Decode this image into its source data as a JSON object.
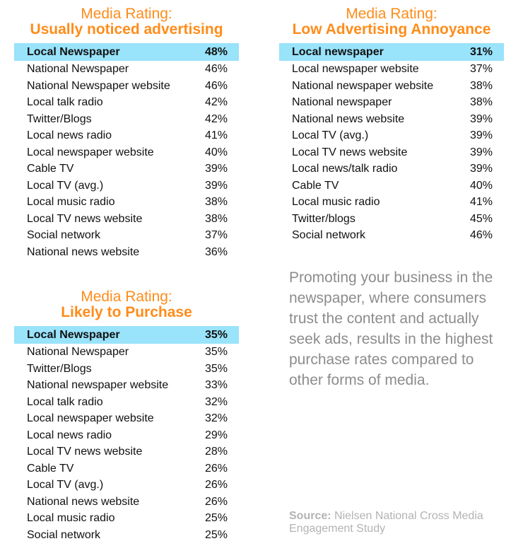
{
  "panels": [
    {
      "title_line1": "Media Rating:",
      "title_line2": "Usually noticed advertising",
      "rows": [
        {
          "label": "Local Newspaper",
          "value": "48%",
          "highlight": true
        },
        {
          "label": "National Newspaper",
          "value": "46%"
        },
        {
          "label": "National Newspaper website",
          "value": "46%"
        },
        {
          "label": "Local talk radio",
          "value": "42%"
        },
        {
          "label": "Twitter/Blogs",
          "value": "42%"
        },
        {
          "label": "Local news radio",
          "value": "41%"
        },
        {
          "label": "Local newspaper website",
          "value": "40%"
        },
        {
          "label": "Cable TV",
          "value": "39%"
        },
        {
          "label": "Local TV (avg.)",
          "value": "39%"
        },
        {
          "label": "Local music radio",
          "value": "38%"
        },
        {
          "label": "Local TV news website",
          "value": "38%"
        },
        {
          "label": "Social network",
          "value": "37%"
        },
        {
          "label": "National news website",
          "value": "36%"
        }
      ]
    },
    {
      "title_line1": "Media Rating:",
      "title_line2": "Low Advertising Annoyance",
      "rows": [
        {
          "label": "Local newspaper",
          "value": "31%",
          "highlight": true
        },
        {
          "label": "Local newspaper website",
          "value": "37%"
        },
        {
          "label": "National newspaper website",
          "value": "38%"
        },
        {
          "label": "National newspaper",
          "value": "38%"
        },
        {
          "label": "National news website",
          "value": "39%"
        },
        {
          "label": "Local TV (avg.)",
          "value": "39%"
        },
        {
          "label": "Local TV news website",
          "value": "39%"
        },
        {
          "label": "Local news/talk radio",
          "value": "39%"
        },
        {
          "label": "Cable TV",
          "value": "40%"
        },
        {
          "label": "Local music radio",
          "value": "41%"
        },
        {
          "label": "Twitter/blogs",
          "value": "45%"
        },
        {
          "label": "Social network",
          "value": "46%"
        }
      ]
    },
    {
      "title_line1": "Media Rating:",
      "title_line2": "Likely to Purchase",
      "rows": [
        {
          "label": "Local Newspaper",
          "value": "35%",
          "highlight": true
        },
        {
          "label": "National Newspaper",
          "value": "35%"
        },
        {
          "label": "Twitter/Blogs",
          "value": "35%"
        },
        {
          "label": "National newspaper website",
          "value": "33%"
        },
        {
          "label": "Local talk radio",
          "value": "32%"
        },
        {
          "label": "Local newspaper website",
          "value": "32%"
        },
        {
          "label": "Local news radio",
          "value": "29%"
        },
        {
          "label": "Local TV news website",
          "value": "28%"
        },
        {
          "label": "Cable TV",
          "value": "26%"
        },
        {
          "label": "Local TV (avg.)",
          "value": "26%"
        },
        {
          "label": "National news website",
          "value": "26%"
        },
        {
          "label": "Local music radio",
          "value": "25%"
        },
        {
          "label": "Social network",
          "value": "25%"
        }
      ]
    }
  ],
  "paragraph": "Promoting your business in the newspaper, where consumers trust the content and actually seek ads, results in the highest purchase rates compared to other forms of media.",
  "source": {
    "label": "Source:",
    "text": " Nielsen National Cross Media Engagement Study"
  },
  "colors": {
    "title": "#ff8c1a",
    "highlight": "#99e3fb",
    "paragraph": "#8c8c8c",
    "source": "#b3b3b3"
  }
}
